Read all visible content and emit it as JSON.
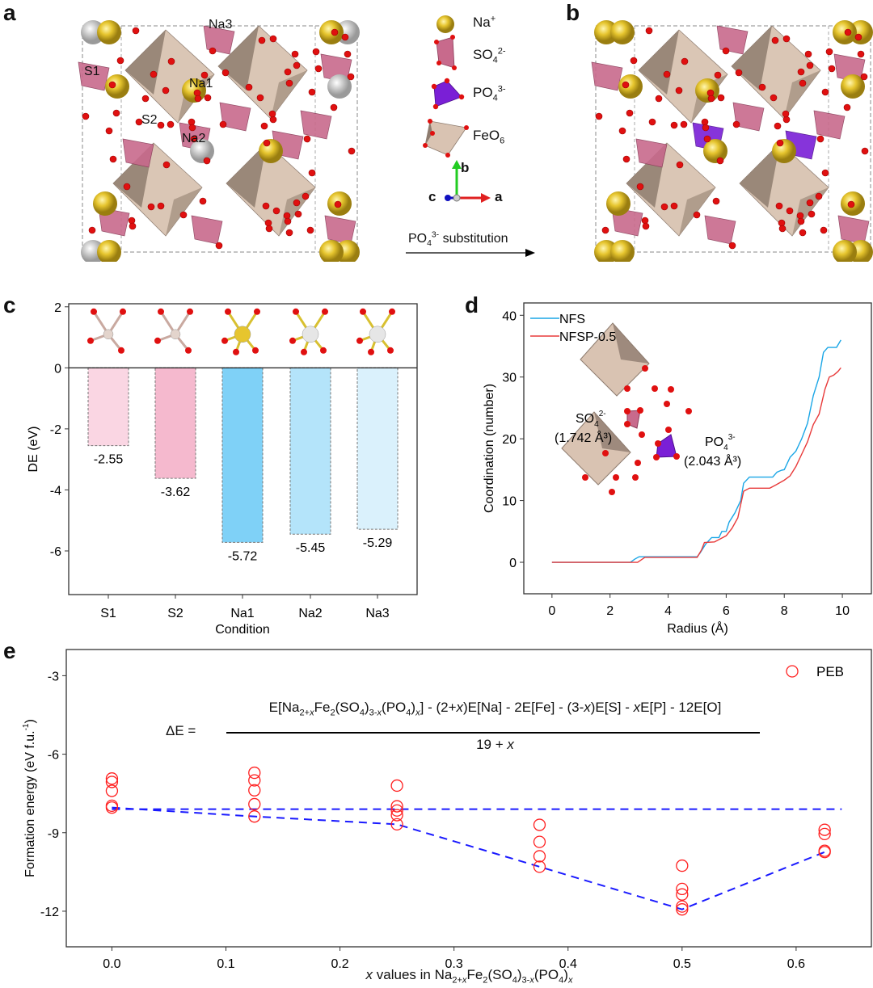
{
  "panel_labels": {
    "a": "a",
    "b": "b",
    "c": "c",
    "d": "d",
    "e": "e"
  },
  "structure_a": {
    "site_labels": [
      "Na3",
      "S1",
      "Na1",
      "S2",
      "Na2"
    ]
  },
  "legend": {
    "na": {
      "base": "Na",
      "sup": "+"
    },
    "so4": {
      "base": "SO",
      "sub": "4",
      "sup": "2-"
    },
    "po4": {
      "base": "PO",
      "sub": "4",
      "sup": "3-"
    },
    "feo6": {
      "base": "FeO",
      "sub": "6"
    },
    "axes": {
      "b": "b",
      "c": "c",
      "a": "a"
    },
    "arrow": {
      "base": "PO",
      "sub": "4",
      "sup": "3-",
      "rest": " substitution"
    }
  },
  "colors": {
    "na": "#e6c52e",
    "o": "#e01010",
    "so4": "#c86a8c",
    "po4": "#7a1fd6",
    "feo6": "#cdb7a6",
    "nfs": "#1aa6e6",
    "nfsp": "#e83a3a",
    "peb": "#ff2020",
    "hull": "#1a1aff"
  },
  "chart_data": [
    {
      "id": "c",
      "type": "bar",
      "categories": [
        "S1",
        "S2",
        "Na1",
        "Na2",
        "Na3"
      ],
      "values": [
        -2.55,
        -3.62,
        -5.72,
        -5.45,
        -5.29
      ],
      "value_labels": [
        "-2.55",
        "-3.62",
        "-5.72",
        "-5.45",
        "-5.29"
      ],
      "bar_colors": [
        "#fad6e3",
        "#f5b9ce",
        "#7fd1f7",
        "#b4e4fa",
        "#daf1fc"
      ],
      "xlabel": "Condition",
      "ylabel": "DE (eV)",
      "ylim": [
        -7.43,
        2.1
      ],
      "yticks": [
        2,
        0,
        -2,
        -4,
        -6
      ],
      "ytick_labels": [
        "2",
        "0",
        "-2",
        "-4",
        "-6"
      ]
    },
    {
      "id": "d",
      "type": "line",
      "xlabel": "Radius (Å)",
      "ylabel": "Coordination (number)",
      "xlim": [
        -0.97,
        11.0
      ],
      "ylim": [
        -5.1,
        42
      ],
      "xticks": [
        0,
        2,
        4,
        6,
        8,
        10
      ],
      "xtick_labels": [
        "0",
        "2",
        "4",
        "6",
        "8",
        "10"
      ],
      "yticks": [
        0,
        10,
        20,
        30,
        40
      ],
      "ytick_labels": [
        "0",
        "10",
        "20",
        "30",
        "40"
      ],
      "legend_position": "top-left",
      "series": [
        {
          "name": "NFS",
          "color": "#1aa6e6",
          "points": [
            [
              0,
              0
            ],
            [
              2.7,
              0
            ],
            [
              2.85,
              0.5
            ],
            [
              3.0,
              0.9
            ],
            [
              5.0,
              0.9
            ],
            [
              5.1,
              1.5
            ],
            [
              5.3,
              3
            ],
            [
              5.5,
              4
            ],
            [
              5.75,
              4
            ],
            [
              5.85,
              5
            ],
            [
              6.0,
              5
            ],
            [
              6.1,
              6.5
            ],
            [
              6.3,
              8
            ],
            [
              6.5,
              10
            ],
            [
              6.6,
              12.8
            ],
            [
              6.8,
              13.8
            ],
            [
              7.6,
              13.8
            ],
            [
              7.75,
              14.6
            ],
            [
              7.9,
              14.9
            ],
            [
              8.0,
              15
            ],
            [
              8.2,
              17
            ],
            [
              8.4,
              18
            ],
            [
              8.6,
              20
            ],
            [
              8.8,
              22.5
            ],
            [
              9.0,
              27
            ],
            [
              9.2,
              30
            ],
            [
              9.35,
              34
            ],
            [
              9.5,
              34.8
            ],
            [
              9.8,
              34.8
            ],
            [
              9.95,
              36
            ]
          ]
        },
        {
          "name": "NFSP-0.5",
          "color": "#e83a3a",
          "points": [
            [
              0,
              0
            ],
            [
              2.95,
              0
            ],
            [
              3.2,
              0.8
            ],
            [
              5.0,
              0.8
            ],
            [
              5.15,
              2
            ],
            [
              5.25,
              3.2
            ],
            [
              5.6,
              3.3
            ],
            [
              5.8,
              3.8
            ],
            [
              6.0,
              4.3
            ],
            [
              6.2,
              5.5
            ],
            [
              6.4,
              7.2
            ],
            [
              6.6,
              11.5
            ],
            [
              6.8,
              12
            ],
            [
              7.5,
              12
            ],
            [
              7.7,
              12.5
            ],
            [
              8.0,
              13.3
            ],
            [
              8.2,
              14
            ],
            [
              8.4,
              15.5
            ],
            [
              8.6,
              17.5
            ],
            [
              8.8,
              19.5
            ],
            [
              9.0,
              22.3
            ],
            [
              9.2,
              24
            ],
            [
              9.4,
              28
            ],
            [
              9.55,
              30
            ],
            [
              9.7,
              30.3
            ],
            [
              9.85,
              30.9
            ],
            [
              9.95,
              31.5
            ]
          ]
        }
      ],
      "annotations": [
        {
          "base": "SO",
          "sub": "4",
          "sup": "2-",
          "volume": "(1.742 Å³)"
        },
        {
          "base": "PO",
          "sub": "4",
          "sup": "3-",
          "volume": "(2.043 Å³)"
        }
      ]
    },
    {
      "id": "e",
      "type": "scatter",
      "ylabel": "Formation energy (eV f.u.⁻¹)",
      "ylabel_parts": {
        "base": "Formation energy (eV f.u.",
        "sup": "-1",
        "end": ")"
      },
      "xlabel_parts": [
        [
          "x",
          "i"
        ],
        [
          " values in Na",
          "n"
        ],
        [
          "2+",
          "sub"
        ],
        [
          "x",
          "subi"
        ],
        [
          "Fe",
          "n"
        ],
        [
          "2",
          "sub"
        ],
        [
          "(SO",
          "n"
        ],
        [
          "4",
          "sub"
        ],
        [
          ")",
          "n"
        ],
        [
          "3-",
          "sub"
        ],
        [
          "x",
          "subi"
        ],
        [
          "(PO",
          "n"
        ],
        [
          "4",
          "sub"
        ],
        [
          ")",
          "n"
        ],
        [
          "x",
          "subi"
        ]
      ],
      "xlim": [
        -0.04,
        0.666
      ],
      "ylim": [
        -13.36,
        -2.0
      ],
      "xticks": [
        0.0,
        0.1,
        0.2,
        0.3,
        0.4,
        0.5,
        0.6
      ],
      "xtick_labels": [
        "0.0",
        "0.1",
        "0.2",
        "0.3",
        "0.4",
        "0.5",
        "0.6"
      ],
      "yticks": [
        -3,
        -6,
        -9,
        -12
      ],
      "ytick_labels": [
        "-3",
        "-6",
        "-9",
        "-12"
      ],
      "legend": "PEB",
      "legend_position": "top-right",
      "points": [
        [
          0,
          -6.93
        ],
        [
          0,
          -7.06
        ],
        [
          0,
          -7.4
        ],
        [
          0,
          -7.97
        ],
        [
          0,
          -8.04
        ],
        [
          0.125,
          -6.71
        ],
        [
          0.125,
          -7.0
        ],
        [
          0.125,
          -7.38
        ],
        [
          0.125,
          -7.91
        ],
        [
          0.125,
          -8.38
        ],
        [
          0.25,
          -7.2
        ],
        [
          0.25,
          -7.99
        ],
        [
          0.25,
          -8.15
        ],
        [
          0.25,
          -8.33
        ],
        [
          0.25,
          -8.68
        ],
        [
          0.375,
          -8.7
        ],
        [
          0.375,
          -9.35
        ],
        [
          0.375,
          -9.9
        ],
        [
          0.375,
          -10.3
        ],
        [
          0.5,
          -10.26
        ],
        [
          0.5,
          -11.15
        ],
        [
          0.5,
          -11.36
        ],
        [
          0.5,
          -11.82
        ],
        [
          0.5,
          -11.93
        ],
        [
          0.625,
          -8.89
        ],
        [
          0.625,
          -9.05
        ],
        [
          0.625,
          -9.69
        ],
        [
          0.625,
          -9.74
        ]
      ],
      "hull": [
        [
          0,
          -8.04
        ],
        [
          0.125,
          -8.38
        ],
        [
          0.25,
          -8.68
        ],
        [
          0.375,
          -10.3
        ],
        [
          0.5,
          -11.93
        ],
        [
          0.625,
          -9.74
        ]
      ],
      "reference_line": {
        "y": -8.1,
        "x": [
          0,
          0.64
        ]
      },
      "equation": {
        "lhs": "ΔE =",
        "numerator": [
          [
            "E[Na",
            "n"
          ],
          [
            "2+",
            "sub"
          ],
          [
            "x",
            "subi"
          ],
          [
            "Fe",
            "n"
          ],
          [
            "2",
            "sub"
          ],
          [
            "(SO",
            "n"
          ],
          [
            "4",
            "sub"
          ],
          [
            ")",
            "n"
          ],
          [
            "3-",
            "sub"
          ],
          [
            "x",
            "subi"
          ],
          [
            "(PO",
            "n"
          ],
          [
            "4",
            "sub"
          ],
          [
            ")",
            "n"
          ],
          [
            "x",
            "subi"
          ],
          [
            "] - (2+",
            "n"
          ],
          [
            "x",
            "i"
          ],
          [
            ")E[Na] - 2E[Fe] - (3-",
            "n"
          ],
          [
            "x",
            "i"
          ],
          [
            ")E[S] - ",
            "n"
          ],
          [
            "x",
            "i"
          ],
          [
            "E[P] - 12E[O]",
            "n"
          ]
        ],
        "denominator": [
          [
            "19 + ",
            "n"
          ],
          [
            "x",
            "i"
          ]
        ]
      }
    }
  ]
}
